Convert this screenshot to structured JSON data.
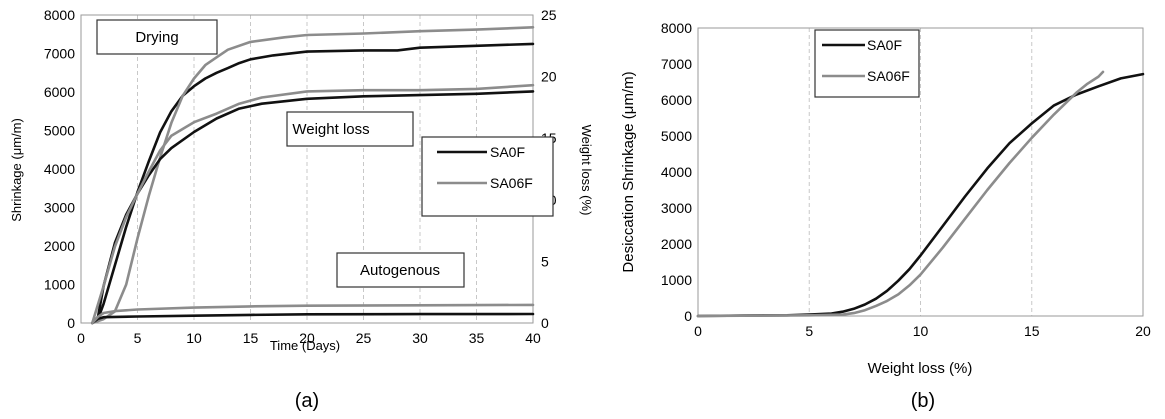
{
  "colors": {
    "SA0F": "#111111",
    "SA06F": "#8c8c8c",
    "grid": "#c8c8c8"
  },
  "chart_data": [
    {
      "type": "line",
      "panel_label": "(a)",
      "xlabel": "Time (Days)",
      "ylabel": "Shrinkage (μm/m)",
      "y2label": "Weight loss (%)",
      "xlim": [
        0,
        40
      ],
      "ylim": [
        0,
        8000
      ],
      "y2lim": [
        0,
        25
      ],
      "xticks": [
        "0",
        "5",
        "10",
        "15",
        "20",
        "25",
        "30",
        "35",
        "40"
      ],
      "yticks": [
        "0",
        "1000",
        "2000",
        "3000",
        "4000",
        "5000",
        "6000",
        "7000",
        "8000"
      ],
      "y2ticks": [
        "0",
        "5",
        "10",
        "15",
        "20",
        "25"
      ],
      "grid": "vertical dashed",
      "legend": {
        "position": "right-center",
        "entries": [
          "SA0F",
          "SA06F"
        ]
      },
      "annotations": [
        "Drying",
        "Weight loss",
        "Autogenous"
      ],
      "series": [
        {
          "name": "SA0F",
          "group": "Drying",
          "axis": "left",
          "points": [
            [
              1,
              0
            ],
            [
              1.5,
              100
            ],
            [
              2,
              500
            ],
            [
              3,
              1500
            ],
            [
              4,
              2500
            ],
            [
              5,
              3400
            ],
            [
              6,
              4200
            ],
            [
              7,
              4950
            ],
            [
              8,
              5500
            ],
            [
              9,
              5900
            ],
            [
              10,
              6150
            ],
            [
              11,
              6350
            ],
            [
              12,
              6500
            ],
            [
              13,
              6620
            ],
            [
              14,
              6750
            ],
            [
              15,
              6850
            ],
            [
              17,
              6950
            ],
            [
              20,
              7050
            ],
            [
              25,
              7080
            ],
            [
              28,
              7080
            ],
            [
              30,
              7150
            ],
            [
              35,
              7200
            ],
            [
              40,
              7250
            ]
          ]
        },
        {
          "name": "SA06F",
          "group": "Drying",
          "axis": "left",
          "points": [
            [
              1,
              0
            ],
            [
              2,
              100
            ],
            [
              3,
              300
            ],
            [
              4,
              1000
            ],
            [
              5,
              2200
            ],
            [
              6,
              3300
            ],
            [
              7,
              4300
            ],
            [
              8,
              5200
            ],
            [
              9,
              5900
            ],
            [
              10,
              6350
            ],
            [
              11,
              6700
            ],
            [
              12,
              6900
            ],
            [
              13,
              7100
            ],
            [
              15,
              7300
            ],
            [
              18,
              7420
            ],
            [
              20,
              7480
            ],
            [
              25,
              7520
            ],
            [
              30,
              7580
            ],
            [
              35,
              7620
            ],
            [
              40,
              7680
            ]
          ]
        },
        {
          "name": "SA0F",
          "group": "Weight loss",
          "axis": "right",
          "points": [
            [
              1,
              0
            ],
            [
              1.5,
              0.5
            ],
            [
              2,
              3
            ],
            [
              3,
              6.5
            ],
            [
              4,
              8.8
            ],
            [
              5,
              10.5
            ],
            [
              6,
              12
            ],
            [
              7,
              13.3
            ],
            [
              8,
              14.2
            ],
            [
              10,
              15.5
            ],
            [
              12,
              16.6
            ],
            [
              14,
              17.4
            ],
            [
              16,
              17.8
            ],
            [
              20,
              18.2
            ],
            [
              25,
              18.4
            ],
            [
              30,
              18.5
            ],
            [
              35,
              18.6
            ],
            [
              40,
              18.8
            ]
          ]
        },
        {
          "name": "SA06F",
          "group": "Weight loss",
          "axis": "right",
          "points": [
            [
              1,
              0
            ],
            [
              2,
              3
            ],
            [
              3,
              6.2
            ],
            [
              4,
              8.6
            ],
            [
              5,
              10.5
            ],
            [
              6,
              12.3
            ],
            [
              7,
              14
            ],
            [
              8,
              15.2
            ],
            [
              10,
              16.3
            ],
            [
              12,
              17
            ],
            [
              14,
              17.8
            ],
            [
              16,
              18.3
            ],
            [
              20,
              18.8
            ],
            [
              25,
              18.9
            ],
            [
              30,
              18.9
            ],
            [
              35,
              19
            ],
            [
              40,
              19.3
            ]
          ]
        },
        {
          "name": "SA0F",
          "group": "Autogenous",
          "axis": "left",
          "points": [
            [
              1,
              0
            ],
            [
              1.5,
              110
            ],
            [
              2,
              150
            ],
            [
              5,
              170
            ],
            [
              10,
              190
            ],
            [
              15,
              210
            ],
            [
              20,
              225
            ],
            [
              30,
              230
            ],
            [
              40,
              235
            ]
          ]
        },
        {
          "name": "SA06F",
          "group": "Autogenous",
          "axis": "left",
          "points": [
            [
              1,
              0
            ],
            [
              1.5,
              160
            ],
            [
              2,
              260
            ],
            [
              3,
              310
            ],
            [
              5,
              350
            ],
            [
              10,
              400
            ],
            [
              15,
              430
            ],
            [
              20,
              450
            ],
            [
              30,
              460
            ],
            [
              40,
              470
            ]
          ]
        }
      ]
    },
    {
      "type": "line",
      "panel_label": "(b)",
      "xlabel": "Weight loss (%)",
      "ylabel": "Desiccation Shrinkage (μm/m)",
      "xlim": [
        0,
        20
      ],
      "ylim": [
        0,
        8000
      ],
      "xticks": [
        "0",
        "5",
        "10",
        "15",
        "20"
      ],
      "yticks": [
        "0",
        "1000",
        "2000",
        "3000",
        "4000",
        "5000",
        "6000",
        "7000",
        "8000"
      ],
      "grid": "vertical dashed",
      "legend": {
        "position": "top-left",
        "entries": [
          "SA0F",
          "SA06F"
        ]
      },
      "series": [
        {
          "name": "SA0F",
          "points": [
            [
              0,
              0
            ],
            [
              2,
              10
            ],
            [
              4,
              20
            ],
            [
              5,
              40
            ],
            [
              6,
              70
            ],
            [
              6.5,
              120
            ],
            [
              7,
              200
            ],
            [
              7.5,
              320
            ],
            [
              8,
              480
            ],
            [
              8.5,
              700
            ],
            [
              9,
              980
            ],
            [
              9.5,
              1300
            ],
            [
              10,
              1680
            ],
            [
              11,
              2500
            ],
            [
              12,
              3320
            ],
            [
              13,
              4100
            ],
            [
              14,
              4800
            ],
            [
              15,
              5350
            ],
            [
              16,
              5850
            ],
            [
              17,
              6150
            ],
            [
              18,
              6380
            ],
            [
              19,
              6600
            ],
            [
              20,
              6720
            ]
          ]
        },
        {
          "name": "SA06F",
          "points": [
            [
              0,
              0
            ],
            [
              3,
              10
            ],
            [
              5,
              20
            ],
            [
              6.5,
              40
            ],
            [
              7,
              80
            ],
            [
              7.5,
              160
            ],
            [
              8,
              280
            ],
            [
              8.5,
              420
            ],
            [
              9,
              600
            ],
            [
              9.5,
              850
            ],
            [
              10,
              1150
            ],
            [
              11,
              1900
            ],
            [
              12,
              2700
            ],
            [
              13,
              3500
            ],
            [
              14,
              4250
            ],
            [
              15,
              4950
            ],
            [
              16,
              5600
            ],
            [
              17,
              6200
            ],
            [
              17.5,
              6450
            ],
            [
              18,
              6650
            ],
            [
              18.2,
              6780
            ]
          ]
        }
      ]
    }
  ]
}
